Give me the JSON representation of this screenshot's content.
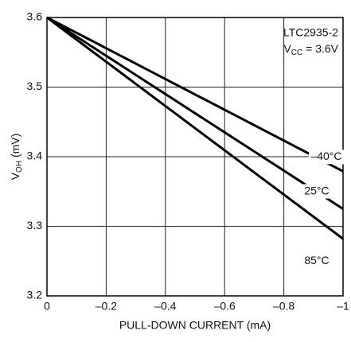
{
  "chart_data": {
    "type": "line",
    "ylabel_parts": [
      "V",
      "OH",
      " (mV)"
    ],
    "xlabel": "PULL-DOWN CURRENT (mA)",
    "annotation": "LTC2935-2",
    "annotation2_parts": [
      "V",
      "CC",
      " = 3.6V"
    ],
    "x": [
      0,
      -1
    ],
    "series": [
      {
        "name": "–40°C",
        "color": "#000000",
        "values": [
          3.6,
          3.379
        ]
      },
      {
        "name": "25°C",
        "color": "#000000",
        "values": [
          3.6,
          3.325
        ]
      },
      {
        "name": "85°C",
        "color": "#000000",
        "values": [
          3.6,
          3.282
        ]
      }
    ],
    "xlim": [
      0,
      -1
    ],
    "xticks": [
      0,
      {
        "value": -0.2,
        "label": "–0.2"
      },
      {
        "value": -0.4,
        "label": "–0.4"
      },
      {
        "value": -0.6,
        "label": "–0.6"
      },
      {
        "value": -0.8,
        "label": "–0.8"
      },
      {
        "value": -1,
        "label": "–1"
      }
    ],
    "ylim": [
      3.2,
      3.6
    ],
    "yticks": [
      3.2,
      3.3,
      3.4,
      3.5,
      3.6
    ],
    "grid": true
  }
}
